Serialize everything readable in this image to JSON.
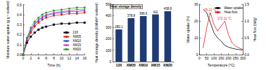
{
  "chart_data": [
    {
      "type": "line",
      "x_label": "Time (h)",
      "y_label": "Moisture water uptake (g g⁻¹ sorbent)",
      "x": [
        0,
        1,
        2,
        3,
        4,
        5,
        6,
        8,
        10,
        12,
        14,
        16
      ],
      "series": [
        {
          "name": "13X",
          "color": "#000000",
          "marker": "square",
          "values": [
            0,
            0.12,
            0.18,
            0.22,
            0.25,
            0.27,
            0.28,
            0.3,
            0.31,
            0.31,
            0.32,
            0.32
          ]
        },
        {
          "name": "XM05",
          "color": "#e41a1c",
          "marker": "circle",
          "values": [
            0,
            0.14,
            0.22,
            0.28,
            0.32,
            0.35,
            0.37,
            0.39,
            0.4,
            0.41,
            0.41,
            0.42
          ]
        },
        {
          "name": "XM10",
          "color": "#1f4fd1",
          "marker": "triangle",
          "values": [
            0,
            0.15,
            0.24,
            0.3,
            0.34,
            0.37,
            0.39,
            0.41,
            0.42,
            0.43,
            0.43,
            0.44
          ]
        },
        {
          "name": "XM15",
          "color": "#d62fbf",
          "marker": "diamond",
          "values": [
            0,
            0.16,
            0.25,
            0.31,
            0.35,
            0.38,
            0.4,
            0.42,
            0.43,
            0.44,
            0.45,
            0.45
          ]
        },
        {
          "name": "XM20",
          "color": "#2a9d2a",
          "marker": "circle",
          "values": [
            0,
            0.17,
            0.27,
            0.33,
            0.37,
            0.4,
            0.42,
            0.44,
            0.45,
            0.46,
            0.47,
            0.47
          ]
        }
      ],
      "xlim": [
        0,
        16
      ],
      "xticks": [
        0,
        2,
        4,
        6,
        8,
        10,
        12,
        14,
        16
      ],
      "ylim": [
        0,
        0.5
      ],
      "yticks": [
        {
          "value": 0,
          "label": "0.0"
        },
        0.1,
        0.2,
        0.3,
        0.4,
        0.5
      ],
      "legend": "lower right",
      "grid": false
    },
    {
      "type": "bar",
      "title": "Heat storage density",
      "y_label": "Heat storage density (kWh/m³ sorbent)",
      "categories": [
        "13X",
        "XM05",
        "XM10",
        "XM15",
        "XM20"
      ],
      "values": [
        280.1,
        378.8,
        396.6,
        411,
        438.8
      ],
      "color": "#1f3b73",
      "ylim": [
        0,
        500
      ],
      "yticks": [
        0,
        100,
        200,
        300,
        400,
        500
      ],
      "data_labels": true,
      "grid": false
    },
    {
      "type": "line",
      "x_label": "Temperature (°C)",
      "y_label": "Water uptake (%)",
      "y2_label": "Heat flow (W/g)",
      "x": [
        25,
        50,
        75,
        100,
        125,
        150,
        175,
        200,
        225,
        250,
        275,
        300
      ],
      "series": [
        {
          "name": "Water uptake",
          "color": "#000000",
          "marker": "none",
          "line_style": "solid",
          "values": [
            27,
            25,
            19,
            13,
            10,
            8,
            5.5,
            4.5,
            3.8,
            3.3,
            3.0,
            2.8
          ]
        },
        {
          "name": "Heat flow",
          "color": "#e41a1c",
          "marker": "none",
          "line_style": "solid",
          "axis": "y2",
          "values": [
            0.2,
            0.8,
            1.25,
            0.9,
            0.7,
            0.85,
            1.0,
            0.6,
            0.35,
            0.25,
            0.2,
            0.15
          ]
        }
      ],
      "annotations": [
        {
          "text": "75.21 °C",
          "x": 75.21,
          "y": 1.25,
          "axis": "y2"
        },
        {
          "text": "172.11 °C",
          "x": 172.11,
          "y": 1.0,
          "axis": "y2"
        }
      ],
      "xlim": [
        0,
        300
      ],
      "xticks": [
        0,
        50,
        100,
        150,
        200,
        250,
        300
      ],
      "ylim": [
        0,
        30
      ],
      "yticks": [
        0,
        10,
        20,
        30
      ],
      "y2lim": [
        0,
        1.5
      ],
      "y2ticks": [
        {
          "value": 0,
          "label": "0.0"
        },
        0.5,
        {
          "value": 1,
          "label": "1.0"
        },
        1.5
      ],
      "legend": "upper right",
      "grid": false
    }
  ]
}
